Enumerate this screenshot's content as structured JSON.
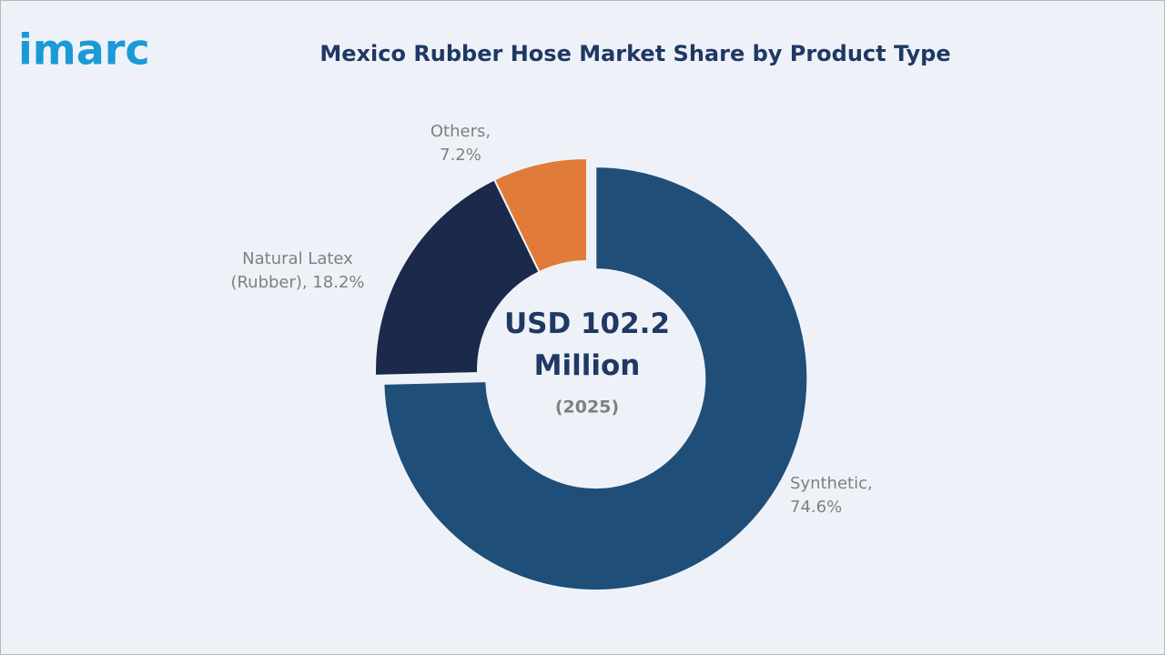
{
  "logo": "imarc",
  "chart_data": {
    "type": "donut",
    "title": "Mexico Rubber Hose Market Share by Product Type",
    "values": [
      74.6,
      18.2,
      7.2
    ],
    "value_labels": [
      "Synthetic, 74.6%",
      "Natural Latex (Rubber), 18.2%",
      "Others, 7.2%"
    ],
    "colors": [
      "#1f4e79",
      "#1b2a4a",
      "#e07b39"
    ],
    "center_text": "USD 102.2 Million",
    "center_subtext": "(2025)"
  }
}
